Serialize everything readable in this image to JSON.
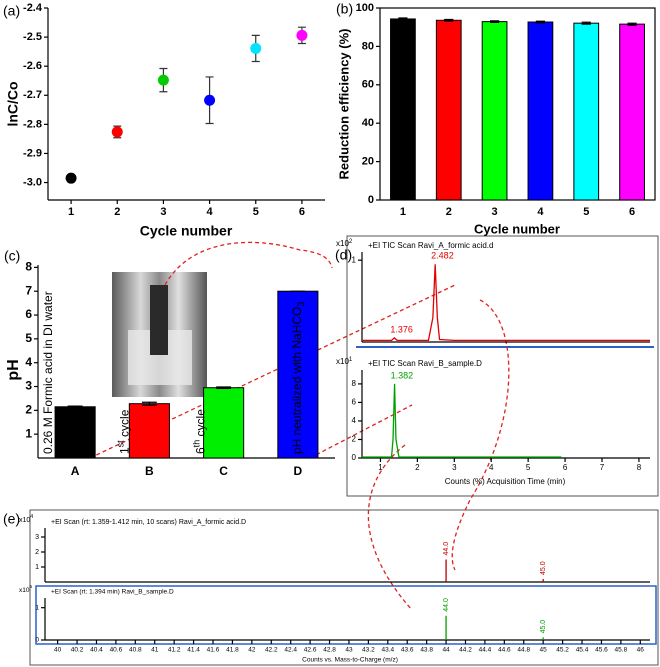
{
  "chart_data": [
    {
      "type": "scatter",
      "panel_label": "(a)",
      "x_label": "Cycle number",
      "y_label": "lnC/Co",
      "x": [
        1,
        2,
        3,
        4,
        5,
        6
      ],
      "values": [
        -2.985,
        -2.826,
        -2.648,
        -2.717,
        -2.539,
        -2.494
      ],
      "errors": [
        0.006,
        0.02,
        0.04,
        0.08,
        0.045,
        0.028
      ],
      "colors": [
        "#000000",
        "#ff0000",
        "#00cc00",
        "#0000ff",
        "#00e5ff",
        "#ff00ff"
      ],
      "xlim": [
        0.5,
        6.5
      ],
      "xticks": [
        1,
        2,
        3,
        4,
        5,
        6
      ],
      "ylim": [
        -3.06,
        -2.4
      ],
      "yticks": [
        {
          "value": -3,
          "label": "-3.0"
        },
        -2.9,
        -2.8,
        -2.7,
        -2.6,
        -2.5,
        -2.4
      ]
    },
    {
      "type": "bar",
      "panel_label": "(b)",
      "x_label": "Cycle number",
      "y_label": "Reduction efficiency (%)",
      "categories": [
        "1",
        "2",
        "3",
        "4",
        "5",
        "6"
      ],
      "values": [
        94.3,
        93.6,
        92.9,
        92.7,
        92.1,
        91.6
      ],
      "errors": [
        0.5,
        0.4,
        0.4,
        0.4,
        0.5,
        0.5
      ],
      "colors": [
        "#000000",
        "#ff0000",
        "#00ff00",
        "#0000ff",
        "#00ffff",
        "#ff00ff"
      ],
      "ylim": [
        0,
        100
      ],
      "yticks": [
        0,
        20,
        40,
        60,
        80,
        100
      ],
      "frame": true
    },
    {
      "type": "bar",
      "panel_label": "(c)",
      "y_label": "pH",
      "categories": [
        "A",
        "B",
        "C",
        "D"
      ],
      "values": [
        2.15,
        2.28,
        2.95,
        7
      ],
      "errors": [
        0.03,
        0.06,
        0.03,
        0
      ],
      "colors": [
        "#000000",
        "#ff0000",
        "#00ee00",
        "#0000ff"
      ],
      "bar_labels": [
        {
          "text": "0.26 M Formic acid in DI water"
        },
        {
          "text": "1",
          "sup": "st",
          "after": " cycle"
        },
        {
          "text": "6",
          "sup": "th",
          "after": " cycle"
        },
        {
          "text": "pH neutralized with NaHCO",
          "sub": "3"
        }
      ],
      "ylim": [
        0,
        8.1
      ],
      "yticks": [
        1,
        2,
        3,
        4,
        5,
        6,
        7,
        8
      ]
    },
    {
      "type": "line",
      "panel_label": "(d)",
      "title": "+EI TIC Scan Ravi_A_formic acid.d",
      "y_multiplier": "x10",
      "y_multiplier_exponent": "2",
      "xlim": [
        0.5,
        8.3
      ],
      "ylim": [
        0,
        1.1
      ],
      "yticks": [
        1
      ],
      "series": [
        {
          "color": "#e00000",
          "x": [
            0.5,
            1.3,
            1.376,
            1.45,
            2.3,
            2.42,
            2.482,
            2.54,
            2.6,
            3,
            8.3
          ],
          "values": [
            0.02,
            0.02,
            0.05,
            0.02,
            0.02,
            0.3,
            0.95,
            0.3,
            0.03,
            0.02,
            0.02
          ]
        }
      ],
      "annotations": [
        {
          "label": "2.482",
          "value": 2.482
        },
        {
          "label": "1.376",
          "value": 1.376
        }
      ]
    },
    {
      "type": "line",
      "title": "+EI TIC Scan Ravi_B_sample.D",
      "x_label": "Counts (%) Acquisition Time (min)",
      "y_multiplier": "x10",
      "y_multiplier_exponent": "1",
      "xlim": [
        0.5,
        8.3
      ],
      "xticks": [
        1,
        2,
        3,
        4,
        5,
        6,
        7,
        8
      ],
      "ylim": [
        0,
        9.5
      ],
      "yticks": [
        0,
        2,
        4,
        6,
        8
      ],
      "series": [
        {
          "color": "#00a000",
          "x": [
            0.5,
            1.3,
            1.34,
            1.382,
            1.42,
            1.5,
            5.9
          ],
          "values": [
            0.1,
            0.1,
            2,
            8,
            2,
            0.1,
            0.1
          ]
        }
      ],
      "annotations": [
        {
          "label": "1.382",
          "value": 1.382
        }
      ]
    },
    {
      "type": "stem",
      "panel_label": "(e)",
      "title": "+EI Scan (rt: 1.359-1.412 min, 10 scans) Ravi_A_formic acid.D",
      "y_multiplier": "x10",
      "y_multiplier_exponent": "4",
      "xlim": [
        39.87,
        46.1
      ],
      "ylim": [
        0,
        3.6
      ],
      "yticks": [
        1,
        2,
        3
      ],
      "series": [
        {
          "color": "#c00000",
          "x": [
            {
              "value": 44,
              "label": "44.0"
            },
            {
              "value": 45,
              "label": "45.0"
            }
          ],
          "values": [
            1.5,
            0.2
          ]
        }
      ]
    },
    {
      "type": "stem",
      "title": "+EI Scan (rt: 1.394 min) Ravi_B_sample.D",
      "x_label": "Counts vs. Mass-to-Charge (m/z)",
      "y_multiplier": "x10",
      "y_multiplier_exponent": "5",
      "xlim": [
        39.87,
        46.1
      ],
      "ylim": [
        0,
        1.3
      ],
      "yticks": [
        0,
        1
      ],
      "xticks": [
        40,
        40.2,
        40.4,
        40.6,
        40.8,
        41,
        41.2,
        41.4,
        41.6,
        41.8,
        42,
        42.2,
        42.4,
        42.6,
        42.8,
        43,
        43.2,
        43.4,
        43.6,
        43.8,
        44,
        44.2,
        44.4,
        44.6,
        44.8,
        45,
        45.2,
        45.4,
        45.6,
        45.8,
        46
      ],
      "series": [
        {
          "color": "#00a000",
          "x": [
            {
              "value": 44,
              "label": "44.0"
            },
            {
              "value": 45,
              "label": "45.0"
            }
          ],
          "values": [
            0.75,
            0.08
          ]
        }
      ]
    }
  ]
}
